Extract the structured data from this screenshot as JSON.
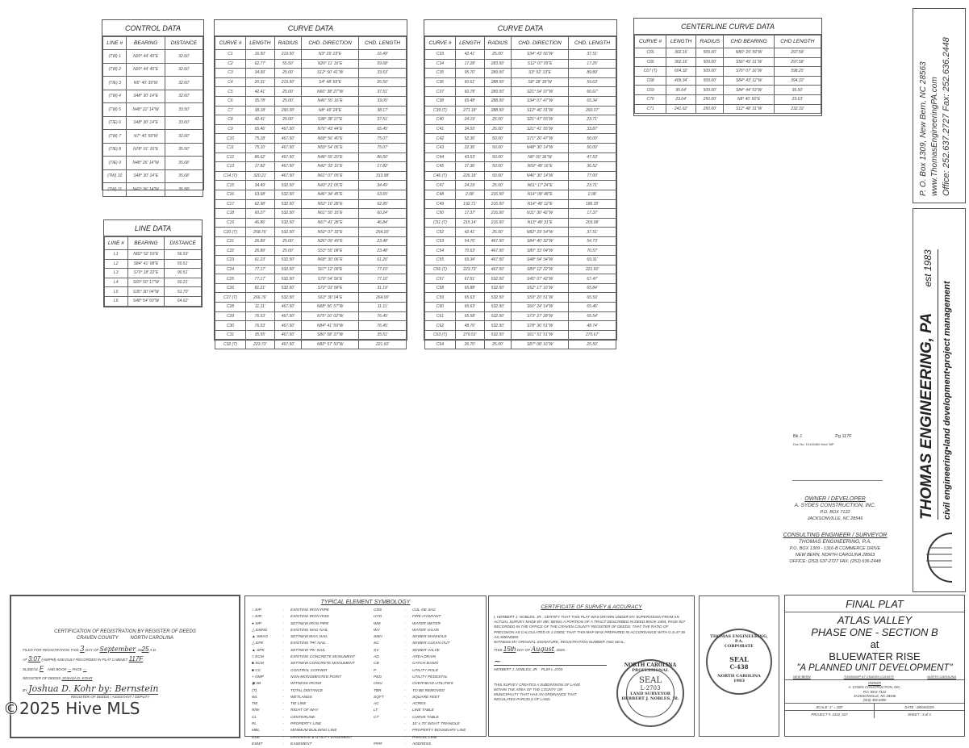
{
  "control_data": {
    "title": "CONTROL DATA",
    "headers": [
      "LINE #",
      "BEARING",
      "DISTANCE"
    ],
    "rows": [
      [
        "(TW) 1",
        "N20° 44' 49\"E",
        "32.60'"
      ],
      [
        "(TW) 2",
        "N20° 44' 45\"E",
        "32.60'"
      ],
      [
        "(TIE) 3",
        "N6° 40' 39\"W",
        "32.60'"
      ],
      [
        "(TW) 4",
        "S48° 30' 14\"E",
        "32.60'"
      ],
      [
        "(TW) 5",
        "N48° 22' 14\"W",
        "33.50'"
      ],
      [
        "(TIE) 6",
        "S48° 30' 14\"E",
        "33.60'"
      ],
      [
        "(TW) 7",
        "N7° 40' 59\"W",
        "32.60'"
      ],
      [
        "(TIE) 8",
        "N78° 01' 16\"E",
        "35.50'"
      ],
      [
        "(TIE) 9",
        "N48° 26' 14\"W",
        "35.68'"
      ],
      [
        "(TW) 10",
        "S48° 30' 14\"E",
        "35.68'"
      ],
      [
        "(TW) 11",
        "N42° 36' 14\"W",
        "35.58'"
      ]
    ]
  },
  "line_data": {
    "title": "LINE DATA",
    "headers": [
      "LINE #",
      "BEARING",
      "DISTANCE"
    ],
    "rows": [
      [
        "L1",
        "N83° 52' 59\"E",
        "56.53'"
      ],
      [
        "L2",
        "S84° 41' 08\"E",
        "50.51'"
      ],
      [
        "L3",
        "S70° 18' 22\"E",
        "90.51'"
      ],
      [
        "L4",
        "S65° 50' 17\"W",
        "60.21'"
      ],
      [
        "L5",
        "S35° 30' 04\"W",
        "51.70'"
      ],
      [
        "L6",
        "S48° 54' 50\"W",
        "64.62'"
      ]
    ]
  },
  "curve_data_1": {
    "title": "CURVE DATA",
    "headers": [
      "CURVE #",
      "LENGTH",
      "RADIUS",
      "CHD. DIRECTION",
      "CHD. LENGTH"
    ],
    "rows": [
      [
        "C1",
        "16.50'",
        "219.50'",
        "N3° 29' 23\"E",
        "16.49'"
      ],
      [
        "C2",
        "62.77'",
        "55.60'",
        "N20° 11' 16\"E",
        "59.68'"
      ],
      [
        "C3",
        "34.99'",
        "25.00'",
        "S12° 50' 41\"W",
        "33.53'"
      ],
      [
        "C4",
        "20.31'",
        "219.50'",
        "S4° 48' 59\"E",
        "26.50'"
      ],
      [
        "C5",
        "42.41'",
        "25.00'",
        "N66° 38' 27\"W",
        "37.51'"
      ],
      [
        "C6",
        "35.78'",
        "25.00'",
        "N46° 55' 16\"E",
        "33.05'"
      ],
      [
        "C7",
        "38.18'",
        "290.00'",
        "N8° 49' 24\"E",
        "38.17'"
      ],
      [
        "C8",
        "42.41'",
        "25.00'",
        "S38° 38' 27\"E",
        "37.51'"
      ],
      [
        "C9",
        "65.46'",
        "467.50'",
        "N76° 43' 44\"E",
        "65.45'"
      ],
      [
        "C10",
        "75.18'",
        "467.50'",
        "N68° 56' 40\"E",
        "75.07'"
      ],
      [
        "C11",
        "75.10'",
        "467.50'",
        "N59° 54' 05\"E",
        "75.07'"
      ],
      [
        "C12",
        "86.62'",
        "467.50'",
        "N48° 55' 20\"E",
        "86.50'"
      ],
      [
        "C13",
        "17.82'",
        "467.50'",
        "N42° 33' 15\"E",
        "17.82'"
      ],
      [
        "C14 (T)",
        "320.21'",
        "467.50'",
        "N61° 07' 05\"E",
        "313.98'"
      ],
      [
        "C15",
        "34.49'",
        "532.50'",
        "N43° 21' 05\"E",
        "34.49'"
      ],
      [
        "C16",
        "63.68'",
        "532.50'",
        "N46° 34' 45\"E",
        "63.65'"
      ],
      [
        "C17",
        "62.98'",
        "532.50'",
        "N53° 16' 28\"E",
        "62.95'"
      ],
      [
        "C18",
        "60.27'",
        "532.50'",
        "N61° 55' 15\"E",
        "60.24'"
      ],
      [
        "C19",
        "46.86'",
        "532.50'",
        "N67° 41' 28\"E",
        "46.84'"
      ],
      [
        "C20 (T)",
        "258.76'",
        "532.50'",
        "N52° 07' 33\"E",
        "254.20'"
      ],
      [
        "C21",
        "26.89'",
        "25.00'",
        "N26° 09' 49\"E",
        "23.48'"
      ],
      [
        "C22",
        "26.89'",
        "25.00'",
        "S53° 55' 08\"E",
        "23.48'"
      ],
      [
        "C23",
        "61.23'",
        "532.50'",
        "N68° 30' 06\"E",
        "61.20'"
      ],
      [
        "C24",
        "77.17'",
        "532.50'",
        "S67° 12' 09\"E",
        "77.10'"
      ],
      [
        "C25",
        "77.17'",
        "532.50'",
        "S79° 54' 56\"E",
        "77.10'"
      ],
      [
        "C26",
        "81.21'",
        "532.50'",
        "S73° 03' 58\"E",
        "31.19'"
      ],
      [
        "C27 (T)",
        "266.76'",
        "532.50'",
        "S63° 30' 04\"E",
        "264.00'"
      ],
      [
        "C28",
        "11.11'",
        "467.50'",
        "N68° 56' 57\"W",
        "11.11'"
      ],
      [
        "C29",
        "76.53'",
        "467.50'",
        "N75° 16' 02\"W",
        "76.45'"
      ],
      [
        "C30",
        "76.53'",
        "467.50'",
        "N84° 41' 59\"W",
        "76.45'"
      ],
      [
        "C31",
        "35.55'",
        "467.50'",
        "S86° 58' 37\"W",
        "35.51'"
      ],
      [
        "C32 (T)",
        "223.73'",
        "467.50'",
        "N82° 57' 50\"W",
        "221.60'"
      ]
    ]
  },
  "curve_data_2": {
    "title": "CURVE DATA",
    "headers": [
      "CURVE #",
      "LENGTH",
      "RADIUS",
      "CHD. DIRECTION",
      "CHD. LENGTH"
    ],
    "rows": [
      [
        "C33",
        "42.41'",
        "25.00'",
        "S34° 43' 56\"W",
        "37.51'"
      ],
      [
        "C34",
        "17.28'",
        "283.50'",
        "S12° 07' 05\"E",
        "17.25'"
      ],
      [
        "C35",
        "95.70'",
        "289.50'",
        "S3° 52' 13\"E",
        "89.89'"
      ],
      [
        "C36",
        "60.61'",
        "288.50'",
        "S8° 28' 39\"W",
        "59.63'"
      ],
      [
        "C37",
        "60.78'",
        "289.50'",
        "S21° 54' 37\"W",
        "66.67'"
      ],
      [
        "C38",
        "65.48'",
        "288.50'",
        "S34° 07' 47\"W",
        "65.34'"
      ],
      [
        "C39 (T)",
        "271.18'",
        "288.50'",
        "S12° 46' 31\"W",
        "260.07'"
      ],
      [
        "C40",
        "24.19'",
        "25.00'",
        "S21° 47' 55\"W",
        "23.71'"
      ],
      [
        "C41",
        "34.55'",
        "25.00'",
        "S21° 41' 55\"W",
        "33.87'"
      ],
      [
        "C42",
        "52.36'",
        "50.00'",
        "S71° 26' 47\"W",
        "50.00'"
      ],
      [
        "C43",
        "22.36'",
        "50.00'",
        "N48° 30' 14\"W",
        "50.00'"
      ],
      [
        "C44",
        "43.53'",
        "50.00'",
        "N8° 00' 36\"W",
        "47.53'"
      ],
      [
        "C45",
        "37.36'",
        "50.00'",
        "N59° 48' 16\"E",
        "36.52'"
      ],
      [
        "C46 (T)",
        "226.18'",
        "50.00'",
        "N46° 30' 14\"W",
        "77.00'"
      ],
      [
        "C47",
        "24.19'",
        "25.00'",
        "N61° 17' 24\"E",
        "23.71'"
      ],
      [
        "C48",
        "2.08'",
        "216.50'",
        "N14° 08' 48\"E",
        "2.08'"
      ],
      [
        "C49",
        "192.71'",
        "216.50'",
        "N14° 48' 12\"E",
        "186.35'"
      ],
      [
        "C50",
        "17.37'",
        "216.50'",
        "N11° 30' 42\"W",
        "17.37'"
      ],
      [
        "C51 (T)",
        "215.14'",
        "216.50'",
        "N13° 48' 31\"E",
        "203.98'"
      ],
      [
        "C52",
        "42.41'",
        "25.00'",
        "N82° 29' 54\"W",
        "37.51'"
      ],
      [
        "C53",
        "54.76'",
        "467.50'",
        "S84° 40' 32\"W",
        "54.73'"
      ],
      [
        "C54",
        "70.63'",
        "467.50'",
        "S80° 33' 04\"W",
        "70.57'"
      ],
      [
        "C55",
        "69.34'",
        "467.50'",
        "S48° 54' 34\"W",
        "69.31'"
      ],
      [
        "C56 (T)",
        "223.73'",
        "467.50'",
        "S89° 12' 22\"W",
        "221.60'"
      ],
      [
        "C57",
        "67.51'",
        "532.50'",
        "S45° 07' 42\"W",
        "67.47'"
      ],
      [
        "C58",
        "65.88'",
        "532.50'",
        "S52° 17' 16\"W",
        "65.84'"
      ],
      [
        "C59",
        "65.63'",
        "532.50'",
        "S59° 20' 51\"W",
        "65.59'"
      ],
      [
        "C60",
        "65.63'",
        "532.50'",
        "S66° 24' 14\"W",
        "65.46'"
      ],
      [
        "C61",
        "65.58'",
        "532.50'",
        "S73° 27' 28\"W",
        "65.54'"
      ],
      [
        "C62",
        "48.76'",
        "532.50'",
        "S78° 36' 51\"W",
        "48.74'"
      ],
      [
        "C63 (T)",
        "279.53'",
        "532.50'",
        "S61° 51' 51\"W",
        "270.67'"
      ],
      [
        "C64",
        "26.70'",
        "25.00'",
        "S87° 08' 16\"W",
        "25.50'"
      ]
    ]
  },
  "centerline_data": {
    "title": "CENTERLINE CURVE DATA",
    "headers": [
      "CURVE #",
      "LENGTH",
      "RADIUS",
      "CHD BEARING",
      "CHD LENGTH"
    ],
    "rows": [
      [
        "C65",
        "302.16'",
        "509.00'",
        "N86° 25' 59\"W",
        "297.58'"
      ],
      [
        "C66",
        "302.16'",
        "509.00'",
        "S56° 49' 31\"W",
        "297.58'"
      ],
      [
        "C67 (T)",
        "604.32'",
        "509.00'",
        "S76° 07' 16\"W",
        "598.25'"
      ],
      [
        "C68",
        "409.34'",
        "509.00'",
        "S84° 43' 12\"W",
        "394.33'"
      ],
      [
        "C69",
        "95.64'",
        "509.00'",
        "S84° 44' 53\"W",
        "95.50'"
      ],
      [
        "C70",
        "23.64'",
        "250.00'",
        "N8° 40' 56\"E",
        "23.63'"
      ],
      [
        "C71",
        "241.62'",
        "250.00'",
        "S12° 48' 31\"W",
        "232.33'"
      ]
    ]
  },
  "recording_stamp": {
    "book": "Bk J",
    "page": "Pg 117F",
    "doc": "Doc No: 10145460 Kind: MP"
  },
  "owner": {
    "heading": "OWNER / DEVELOPER",
    "name": "A. SYDES CONSTRUCTION, INC.",
    "address1": "P.O. BOX 7122",
    "address2": "JACKSONVILLE, NC 28546"
  },
  "engineer": {
    "heading": "CONSULTING ENGINEER / SURVEYOR",
    "name": "THOMAS ENGINEERING, P.A.",
    "address1": "P.O. BOX 1309 - 1316-B COMMERCE DRIVE",
    "address2": "NEW BERN, NORTH CAROLINA 28563",
    "phone": "OFFICE: (252) 637-2727  FAX: (252) 636-2448"
  },
  "firm_strip": {
    "address": "P. O. Box 1309, New Bern, NC 28563",
    "web": "www.ThomasEngineeringPA.com",
    "phones": "Office: 252.637.2727  Fax: 252.636.2448",
    "name": "THOMAS ENGINEERING, PA",
    "est": "est 1983",
    "tagline": "civil engineering•land development•project management"
  },
  "registration": {
    "title": "CERTIFICATION OF REGISTRATION BY REGISTER OF DEEDS",
    "county": "CRAVEN COUNTY",
    "state": "NORTH CAROLINA",
    "line1": "FILED FOR REGISTRATION THIS",
    "day": "3",
    "day_of": "DAY OF",
    "month": "September",
    "year_prefix": ", 20",
    "year": "25",
    "ad": "A.D.",
    "at": "AT",
    "time": "3:07",
    "ampm": "(AM/PM) AND DULY RECORDED IN PLAT CABINET",
    "cabinet": "117F",
    "slide_label": "SLIDE/VL",
    "slide": "F",
    "book_label": "AND BOOK",
    "book": "—",
    "page_label": "PAGE",
    "page": "—",
    "register": "REGISTER OF DEEDS",
    "register_name": "JOSHUA D. KOHR",
    "by": "BY",
    "signature": "Joshua D. Kohr by: Bernstein",
    "sig_caption": "REGISTER OF DEEDS / ASSISTANT / DEPUTY"
  },
  "symbology": {
    "title": "TYPICAL ELEMENT SYMBOLOGY",
    "left": [
      [
        "○ EIP",
        "EXISTING IRON PIPE"
      ],
      [
        "○ EIR",
        "EXISTING IRON ROD"
      ],
      [
        "● SIP",
        "SET/NEW IRON PIPE"
      ],
      [
        "△ EMNG",
        "EXISTING MAG NAIL"
      ],
      [
        "▲ SMAG",
        "SET/NEW MAG NAIL"
      ],
      [
        "△ EPK",
        "EXISTING 'PK' NAIL"
      ],
      [
        "▲ SPK",
        "SET/NEW 'PK' NAIL"
      ],
      [
        "□ ECM",
        "EXISTING CONCRETE MONUMENT"
      ],
      [
        "■ SCM",
        "SET/NEW CONCRETE MONUMENT"
      ],
      [
        "■ CC",
        "CONTROL CORNER"
      ],
      [
        "+ NMP",
        "NON-MONUMENTED POINT"
      ],
      [
        "◉ WI",
        "WITNESS IRONS"
      ],
      [
        "(T)",
        "TOTAL DISTANCE"
      ],
      [
        "WL",
        "WETLANDS"
      ],
      [
        "TIE",
        "TIE LINE"
      ],
      [
        "R/W",
        "RIGHT OF WAY"
      ],
      [
        "CL",
        "CENTERLINE"
      ],
      [
        "PL",
        "PROPERTY LINE"
      ],
      [
        "MBL",
        "MINIMUM BUILDING LINE"
      ],
      [
        "DUE",
        "DRAINAGE & UTILITY EASEMENT"
      ],
      [
        "ESMT",
        "EASEMENT"
      ]
    ],
    "right": [
      [
        "CDS",
        "CUL-DE-SAC"
      ],
      [
        "HYD",
        "FIRE HYDRANT"
      ],
      [
        "WM",
        "WATER METER"
      ],
      [
        "WV",
        "WATER VALVE"
      ],
      [
        "SMH",
        "SEWER MANHOLE"
      ],
      [
        "SC",
        "SEWER CLEAN OUT"
      ],
      [
        "SV",
        "SEWER VALVE"
      ],
      [
        "AD",
        "AREA DRAIN"
      ],
      [
        "CB",
        "CATCH BASIN"
      ],
      [
        "P",
        "UTILITY POLE"
      ],
      [
        "PED",
        "UTILITY PEDESTAL"
      ],
      [
        "OHU",
        "OVERHEAD UTILITIES"
      ],
      [
        "TBR",
        "TO BE REMOVED"
      ],
      [
        "SQFT",
        "SQUARE FEET"
      ],
      [
        "AC",
        "ACRES"
      ],
      [
        "LT",
        "LINE TABLE"
      ],
      [
        "CT",
        "CURVE TABLE"
      ],
      [
        "",
        "10' x 70' SIGHT TRIANGLE"
      ],
      [
        "",
        "PROPERTY BOUNDARY LINE"
      ],
      [
        "",
        "PARCEL LINE"
      ],
      [
        "####",
        "ADDRESS"
      ]
    ]
  },
  "certificate": {
    "title": "CERTIFICATE OF SURVEY & ACCURACY",
    "body": "I, HERBERT J. NOBLES, JR., CERTIFY THAT THIS PLAT WAS DRAWN UNDER MY SUPERVISION FROM AN ACTUAL SURVEY MADE BY ME; BEING A PORTION OF A TRACT DESCRIBED IN DEED BOOK 3494, PAGE 827 RECORDED IN THE OFFICE OF THE CRAVEN COUNTY REGISTER OF DEEDS; THAT THE RATIO OF PRECISION AS CALCULATED IS 1:10000; THAT THIS MAP WAS PREPARED IN ACCORDANCE WITH G.S.47-30 AS AMENDED.",
    "witness": "WITNESS MY ORIGINAL SIGNATURE, REGISTRATION NUMBER AND SEAL,",
    "this": "THIS",
    "day": "15th",
    "day_of": "DAY OF",
    "month": "August",
    "year": ", 2025.",
    "signer": "HERBERT J. NOBLES, JR. - PLS# L-2703",
    "note": "THIS SURVEY CREATES A SUBDIVISION OF LAND WITHIN THE AREA OF THE COUNTY OR MUNICIPALITY THAT HAS AN ORDINANCE THAT REGULATES PARCELS OF LAND.",
    "seal": {
      "top": "NORTH CAROLINA",
      "mid": "PROFESSIONAL",
      "center": "SEAL",
      "number": "L-2703",
      "sub": "LAND SURVEYOR",
      "bottom": "HERBERT J. NOBLES, JR."
    }
  },
  "corp_seal": {
    "ring": "THOMAS ENGINEERING, P.A.",
    "corporate": "CORPORATE",
    "center": "SEAL",
    "number": "C-438",
    "state": "NORTH CAROLINA",
    "year": "1983"
  },
  "title_block": {
    "line1": "FINAL PLAT",
    "line2": "ATLAS VALLEY",
    "line3": "PHASE ONE - SECTION B",
    "line4": "at",
    "line5": "BLUEWATER RISE",
    "line6": "\"A PLANNED UNIT DEVELOPMENT\"",
    "loc": [
      "NEW BERN",
      "TOWNSHIP #7  CRAVEN COUNTY",
      "NORTH CAROLINA"
    ],
    "owner_label": "OWNER",
    "owner": "A. SYDES CONSTRUCTION, INC.",
    "owner_addr1": "P.O. BOX 7122",
    "owner_addr2": "JACKSONVILLE, NC 28546",
    "owner_phone": "(910) 455-6900",
    "scale": "SCALE: 1\" = 100'",
    "date": "DATE : 08/04/2025",
    "project": "PROJECT #: 2310_027",
    "sheet": "SHEET : 3 of 3"
  },
  "watermark": "©2025 Hive MLS"
}
